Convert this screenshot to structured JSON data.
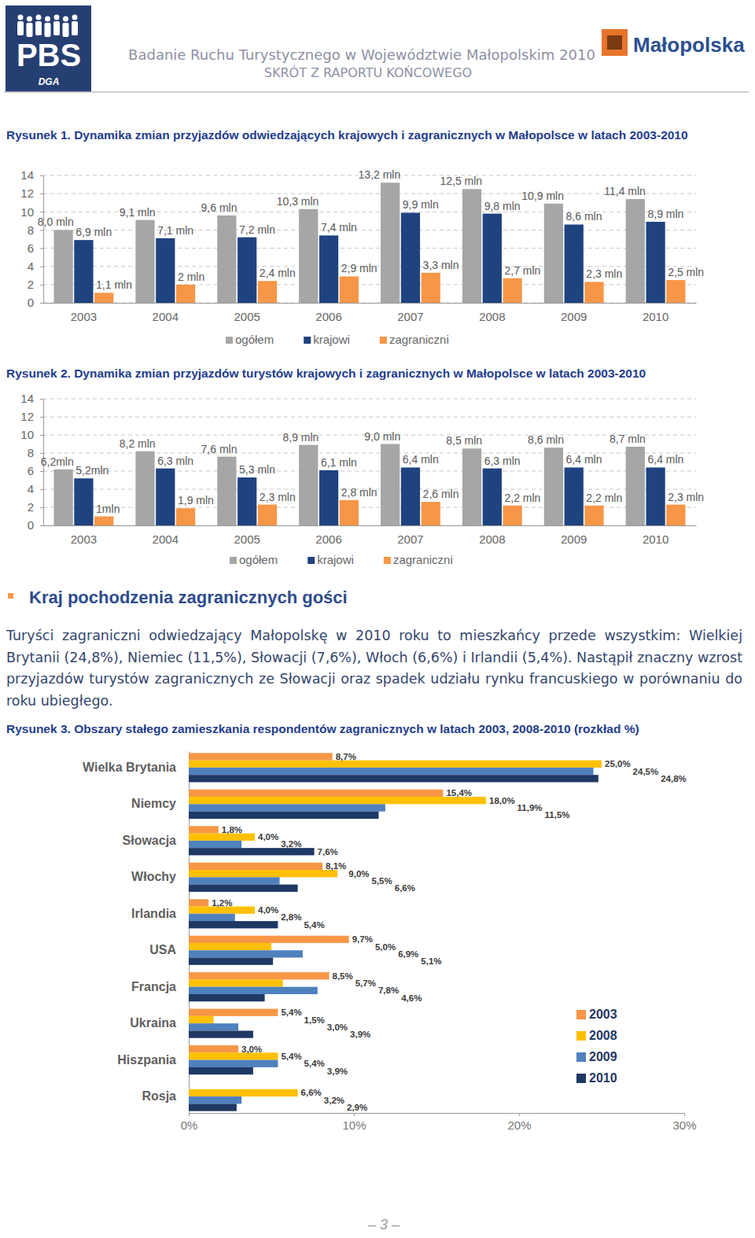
{
  "header": {
    "title": "Badanie Ruchu Turystycznego w Województwie Małopolskim 2010",
    "subtitle": "SKRÓT Z RAPORTU KOŃCOWEGO",
    "logo_left": "PBS",
    "logo_left_sub": "DGA",
    "logo_right": "Małopolska"
  },
  "chart_data": [
    {
      "type": "bar",
      "title": "Rysunek 1. Dynamika zmian przyjazdów odwiedzających krajowych i zagranicznych w Małopolsce w latach 2003-2010",
      "categories": [
        "2003",
        "2004",
        "2005",
        "2006",
        "2007",
        "2008",
        "2009",
        "2010"
      ],
      "series": [
        {
          "name": "ogółem",
          "color": "#a6a6a6",
          "values": [
            8.0,
            9.1,
            9.6,
            10.3,
            13.2,
            12.5,
            10.9,
            11.4
          ],
          "value_labels": [
            "8,0 mln",
            "9,1 mln",
            "9,6 mln",
            "10,3 mln",
            "13,2 mln",
            "12,5 mln",
            "10,9 mln",
            "11,4 mln"
          ]
        },
        {
          "name": "krajowi",
          "color": "#1f4380",
          "values": [
            6.9,
            7.1,
            7.2,
            7.4,
            9.9,
            9.8,
            8.6,
            8.9
          ],
          "value_labels": [
            "6,9 mln",
            "7,1 mln",
            "7,2 mln",
            "7,4 mln",
            "9,9 mln",
            "9,8 mln",
            "8,6 mln",
            "8,9 mln"
          ]
        },
        {
          "name": "zagraniczni",
          "color": "#f79646",
          "values": [
            1.1,
            2,
            2.4,
            2.9,
            3.3,
            2.7,
            2.3,
            2.5
          ],
          "value_labels": [
            "1,1 mln",
            "2 mln",
            "2,4 mln",
            "2,9 mln",
            "3,3 mln",
            "2,7 mln",
            "2,3 mln",
            "2,5 mln"
          ]
        }
      ],
      "ylim": [
        0,
        14
      ],
      "yticks": [
        0,
        2,
        4,
        6,
        8,
        10,
        12,
        14
      ],
      "grid": true,
      "data_labels": true,
      "legend": "bottom"
    },
    {
      "type": "bar",
      "title": "Rysunek 2. Dynamika zmian przyjazdów turystów krajowych i zagranicznych w Małopolsce w latach 2003-2010",
      "categories": [
        "2003",
        "2004",
        "2005",
        "2006",
        "2007",
        "2008",
        "2009",
        "2010"
      ],
      "series": [
        {
          "name": "ogółem",
          "color": "#a6a6a6",
          "values": [
            6.2,
            8.2,
            7.6,
            8.9,
            9.0,
            8.5,
            8.6,
            8.7
          ],
          "value_labels": [
            "6,2mln",
            "8,2 mln",
            "7,6 mln",
            "8,9 mln",
            "9,0 mln",
            "8,5 mln",
            "8,6 mln",
            "8,7 mln"
          ]
        },
        {
          "name": "krajowi",
          "color": "#1f4380",
          "values": [
            5.2,
            6.3,
            5.3,
            6.1,
            6.4,
            6.3,
            6.4,
            6.4
          ],
          "value_labels": [
            "5,2mln",
            "6,3 mln",
            "5,3 mln",
            "6,1 mln",
            "6,4 mln",
            "6,3 mln",
            "6,4 mln",
            "6,4 mln"
          ]
        },
        {
          "name": "zagraniczni",
          "color": "#f79646",
          "values": [
            1,
            1.9,
            2.3,
            2.8,
            2.6,
            2.2,
            2.2,
            2.3
          ],
          "value_labels": [
            "1mln",
            "1,9 mln",
            "2,3 mln",
            "2,8 mln",
            "2,6 mln",
            "2,2 mln",
            "2,2 mln",
            "2,3 mln"
          ]
        }
      ],
      "ylim": [
        0,
        14
      ],
      "yticks": [
        0,
        2,
        4,
        6,
        8,
        10,
        12,
        14
      ],
      "grid": true,
      "data_labels": true,
      "legend": "bottom"
    },
    {
      "type": "bar",
      "orientation": "horizontal",
      "title": "Rysunek 3. Obszary stałego zamieszkania respondentów zagranicznych w latach 2003, 2008-2010 (rozkład %)",
      "categories": [
        "Wielka Brytania",
        "Niemcy",
        "Słowacja",
        "Włochy",
        "Irlandia",
        "USA",
        "Francja",
        "Ukraina",
        "Hiszpania",
        "Rosja"
      ],
      "series": [
        {
          "name": "2003",
          "color": "#f79646",
          "values": [
            8.7,
            15.4,
            1.8,
            8.1,
            1.2,
            9.7,
            8.5,
            5.4,
            3.0,
            null
          ],
          "value_labels": [
            "8,7%",
            "15,4%",
            "1,8%",
            "8,1%",
            "1,2%",
            "9,7%",
            "8,5%",
            "5,4%",
            "3,0%",
            null
          ]
        },
        {
          "name": "2008",
          "color": "#ffc000",
          "values": [
            25.0,
            18.0,
            4.0,
            9.0,
            4.0,
            5.0,
            5.7,
            1.5,
            5.4,
            6.6
          ],
          "value_labels": [
            "25,0%",
            "18,0%",
            "4,0%",
            "9,0%",
            "4,0%",
            "5,0%",
            "5,7%",
            "1,5%",
            "5,4%",
            "6,6%"
          ]
        },
        {
          "name": "2009",
          "color": "#4f81bd",
          "values": [
            24.5,
            11.9,
            3.2,
            5.5,
            2.8,
            6.9,
            7.8,
            3.0,
            5.4,
            3.2
          ],
          "value_labels": [
            "24,5%",
            "11,9%",
            "3,2%",
            "5,5%",
            "2,8%",
            "6,9%",
            "7,8%",
            "3,0%",
            "5,4%",
            "3,2%"
          ]
        },
        {
          "name": "2010",
          "color": "#1f3864",
          "values": [
            24.8,
            11.5,
            7.6,
            6.6,
            5.4,
            5.1,
            4.6,
            3.9,
            3.9,
            2.9
          ],
          "value_labels": [
            "24,8%",
            "11,5%",
            "7,6%",
            "6,6%",
            "5,4%",
            "5,1%",
            "4,6%",
            "3,9%",
            "3,9%",
            "2,9%"
          ]
        }
      ],
      "xlim": [
        0,
        30
      ],
      "xticks": [
        {
          "value": 0,
          "label": "0%"
        },
        {
          "value": 10,
          "label": "10%"
        },
        {
          "value": 20,
          "label": "20%"
        },
        {
          "value": 30,
          "label": "30%"
        }
      ],
      "grid": false,
      "data_labels": true,
      "legend": "right"
    }
  ],
  "section": {
    "heading": "Kraj pochodzenia zagranicznych gości",
    "text": "Turyści zagraniczni odwiedzający Małopolskę w 2010 roku to mieszkańcy przede wszystkim: Wielkiej Brytanii (24,8%), Niemiec (11,5%), Słowacji (7,6%), Włoch (6,6%) i Irlandii (5,4%). Nastąpił znaczny wzrost przyjazdów turystów zagranicznych ze Słowacji oraz spadek udziału rynku francuskiego w porównaniu do roku ubiegłego."
  },
  "page_number": "– 3 –"
}
